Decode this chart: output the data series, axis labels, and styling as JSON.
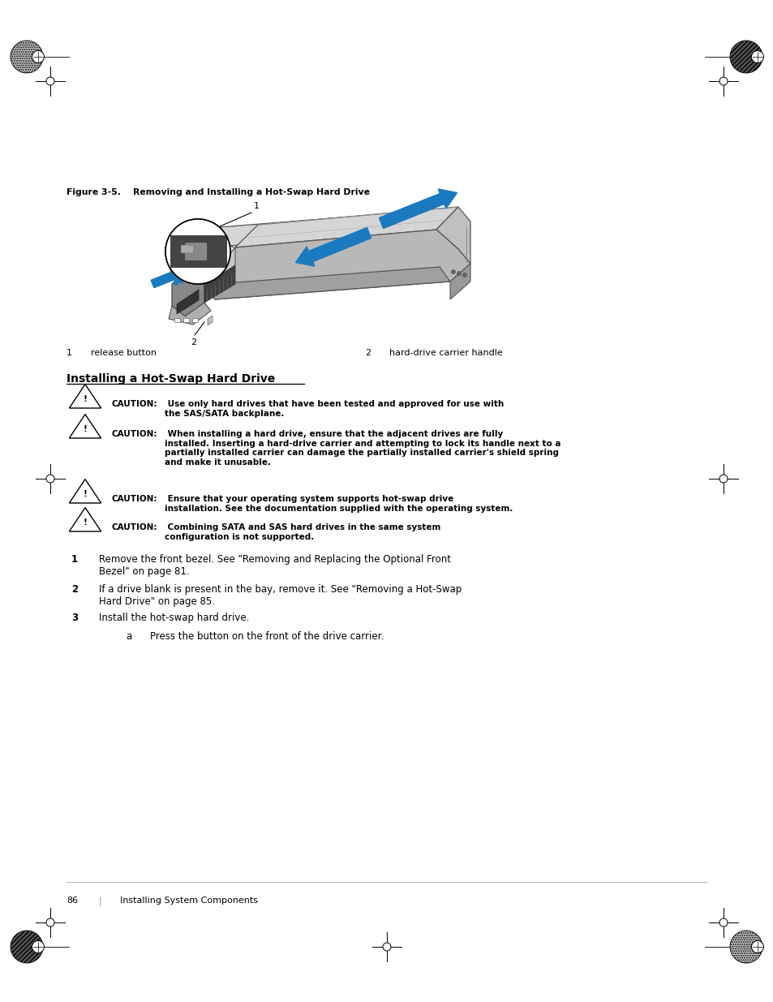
{
  "page_width": 9.54,
  "page_height": 12.35,
  "dpi": 100,
  "background_color": "#ffffff",
  "figure_caption": "Figure 3-5.    Removing and Installing a Hot-Swap Hard Drive",
  "label1_num": "1",
  "label1_text": "release button",
  "label2_num": "2",
  "label2_text": "hard-drive carrier handle",
  "section_title": "Installing a Hot-Swap Hard Drive",
  "caution1_label": "CAUTION:",
  "caution1_rest": " Use only hard drives that have been tested and approved for use with\nthe SAS/SATA backplane.",
  "caution2_label": "CAUTION:",
  "caution2_rest": " When installing a hard drive, ensure that the adjacent drives are fully\ninstalled. Inserting a hard-drive carrier and attempting to lock its handle next to a\npartially installed carrier can damage the partially installed carrier's shield spring\nand make it unusable.",
  "caution3_label": "CAUTION:",
  "caution3_rest": " Ensure that your operating system supports hot-swap drive\ninstallation. See the documentation supplied with the operating system.",
  "caution4_label": "CAUTION:",
  "caution4_rest": " Combining SATA and SAS hard drives in the same system\nconfiguration is not supported.",
  "step1_text": "Remove the front bezel. See \"Removing and Replacing the Optional Front\nBezel\" on page 81.",
  "step2_text": "If a drive blank is present in the bay, remove it. See \"Removing a Hot-Swap\nHard Drive\" on page 85.",
  "step3_text": "Install the hot-swap hard drive.",
  "step3a_text": "Press the button on the front of the drive carrier.",
  "footer_page": "86",
  "footer_sep": "|",
  "footer_text": "Installing System Components",
  "blue_color": "#1a7abf",
  "light_gray": "#e0e0e0",
  "med_gray": "#b0b0b0",
  "dark_gray": "#808080",
  "drive_top": "#d8d8d8",
  "drive_side": "#a8a8a8",
  "drive_front": "#c0c0c0",
  "handle_dark": "#606060",
  "handle_light": "#909090"
}
